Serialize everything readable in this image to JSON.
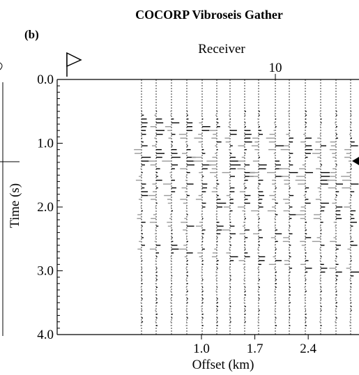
{
  "chart_data": {
    "type": "seismic-wiggle",
    "title": "COCORP Vibroseis Gather",
    "panel_label": "(b)",
    "top_axis": {
      "label": "Receiver",
      "tick_labels": [
        "10"
      ],
      "tick_values": [
        10
      ]
    },
    "y_axis": {
      "label": "Time (s)",
      "range": [
        0.0,
        4.0
      ],
      "major_ticks": [
        0.0,
        1.0,
        2.0,
        3.0,
        4.0
      ],
      "tick_labels": [
        "0.0",
        "1.0",
        "2.0",
        "3.0",
        "4.0"
      ],
      "inverted": true
    },
    "x_axis": {
      "label": "Offset (km)",
      "ticks": [
        1.0,
        1.7,
        2.4
      ],
      "tick_labels": [
        "1.0",
        "1.7",
        "2.4"
      ]
    },
    "grid": false,
    "trace_offsets_km": [
      0.3,
      0.5,
      0.7,
      0.85,
      1.0,
      1.2,
      1.4,
      1.6,
      1.8,
      2.0,
      2.2,
      2.4
    ],
    "events_s": [
      0.85,
      1.0,
      1.3,
      1.4,
      1.5,
      1.8,
      2.0,
      2.4,
      2.8
    ],
    "markers": {
      "shot_flag": "flag-icon",
      "right_arrow": "arrow-left-icon"
    },
    "colors": {
      "trace": "#000000",
      "axis": "#000000",
      "background": "#ffffff"
    }
  }
}
